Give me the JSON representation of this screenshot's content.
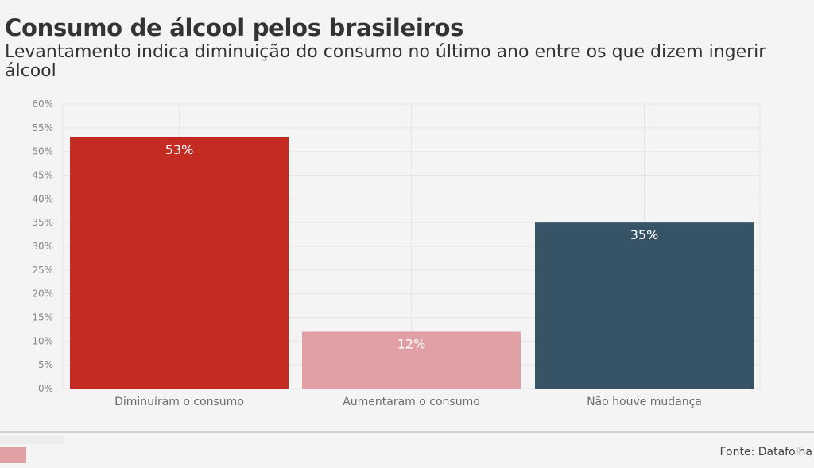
{
  "header": {
    "title": "Consumo de álcool pelos brasileiros",
    "subtitle": "Levantamento indica diminuição do consumo no último ano entre os que dizem ingerir álcool"
  },
  "footer": {
    "source": "Fonte: Datafolha"
  },
  "chart_data": {
    "type": "bar",
    "title": "Consumo de álcool pelos brasileiros",
    "subtitle": "Levantamento indica diminuição do consumo no último ano entre os que dizem ingerir álcool",
    "categories": [
      "Diminuíram o consumo",
      "Aumentaram o consumo",
      "Não houve mudança"
    ],
    "values": [
      53,
      12,
      35
    ],
    "data_labels": [
      "53%",
      "12%",
      "35%"
    ],
    "colors": [
      "#c42b22",
      "#e0a0a4",
      "#365465"
    ],
    "ylim": [
      0,
      60
    ],
    "yticks": [
      0,
      5,
      10,
      15,
      20,
      25,
      30,
      35,
      40,
      45,
      50,
      55,
      60
    ],
    "ytick_labels": [
      "0%",
      "5%",
      "10%",
      "15%",
      "20%",
      "25%",
      "30%",
      "35%",
      "40%",
      "45%",
      "50%",
      "55%",
      "60%"
    ],
    "grid": true,
    "legend": "none"
  }
}
